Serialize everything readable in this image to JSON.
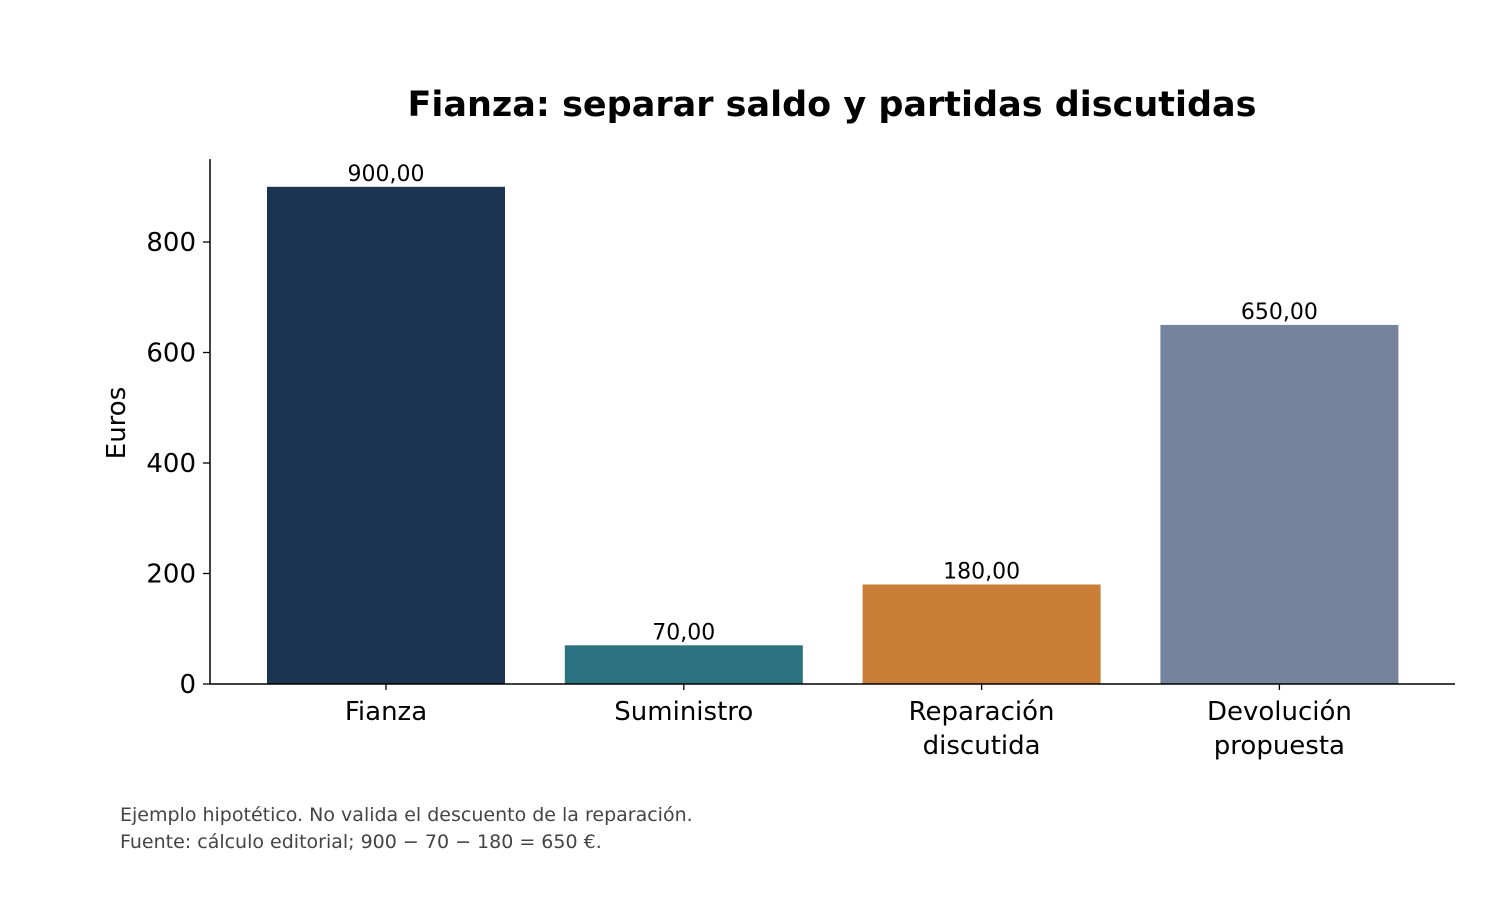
{
  "chart_data": {
    "type": "bar",
    "title": "Fianza: separar saldo y partidas discutidas",
    "xlabel": "",
    "ylabel": "Euros",
    "categories": [
      [
        "Fianza"
      ],
      [
        "Suministro"
      ],
      [
        "Reparación",
        "discutida"
      ],
      [
        "Devolución",
        "propuesta"
      ]
    ],
    "values": [
      900,
      70,
      180,
      650
    ],
    "value_labels": [
      "900,00",
      "70,00",
      "180,00",
      "650,00"
    ],
    "colors": [
      "#1b3551",
      "#2b7180",
      "#c97d36",
      "#75849c"
    ],
    "ylim": [
      0,
      950
    ],
    "yticks": [
      0,
      200,
      400,
      600,
      800
    ],
    "ytick_labels": [
      "0",
      "200",
      "400",
      "600",
      "800"
    ],
    "grid": false,
    "legend": "none"
  },
  "footer": {
    "note": "Ejemplo hipotético. No valida el descuento de la reparación.",
    "source": "Fuente: cálculo editorial; 900 − 70 − 180 = 650 €."
  }
}
